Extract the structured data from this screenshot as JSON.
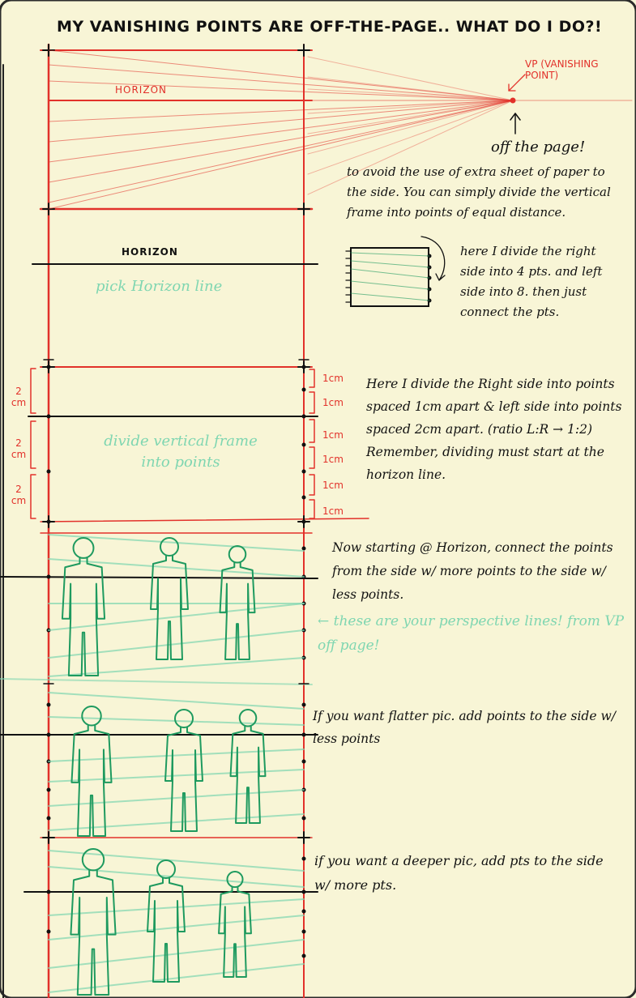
{
  "title": "MY VANISHING POINTS ARE OFF-THE-PAGE.. WHAT DO I DO?!",
  "section1": {
    "horizon_label": "HORIZON",
    "vp_label": "VP (VANISHING POINT)",
    "off_page": "off the page!",
    "avoid_note": "to avoid the use of extra sheet of paper to the side. You can simply divide the vertical frame into points of equal distance.",
    "divide_note": "here I divide the right side into 4 pts. and left side into 8. then just connect the pts."
  },
  "section2": {
    "horizon_label": "HORIZON",
    "pick_label": "pick Horizon line"
  },
  "section3": {
    "left_labels": [
      "2 cm",
      "2 cm",
      "2 cm"
    ],
    "right_labels": [
      "1cm",
      "1cm",
      "1cm",
      "1cm",
      "1cm",
      "1cm"
    ],
    "green_label": "divide vertical frame into points",
    "note": "Here I divide the Right side into points spaced 1cm apart & left side into points spaced 2cm apart. (ratio L:R → 1:2) Remember, dividing must start at the horizon line."
  },
  "section4": {
    "note": "Now starting @ Horizon, connect the points from the side w/ more points to the side w/ less points.",
    "green_label": "← these are your perspective lines! from VP off page!"
  },
  "section5": {
    "note": "If you want flatter pic. add points to the side w/ less points"
  },
  "section6": {
    "note": "if you want a deeper pic, add pts to the side w/ more pts."
  },
  "colors": {
    "paper": "#f8f5d6",
    "red": "#e2312a",
    "green": "#1e9a5f",
    "light_green": "#7fd6b1",
    "ink": "#111111"
  }
}
